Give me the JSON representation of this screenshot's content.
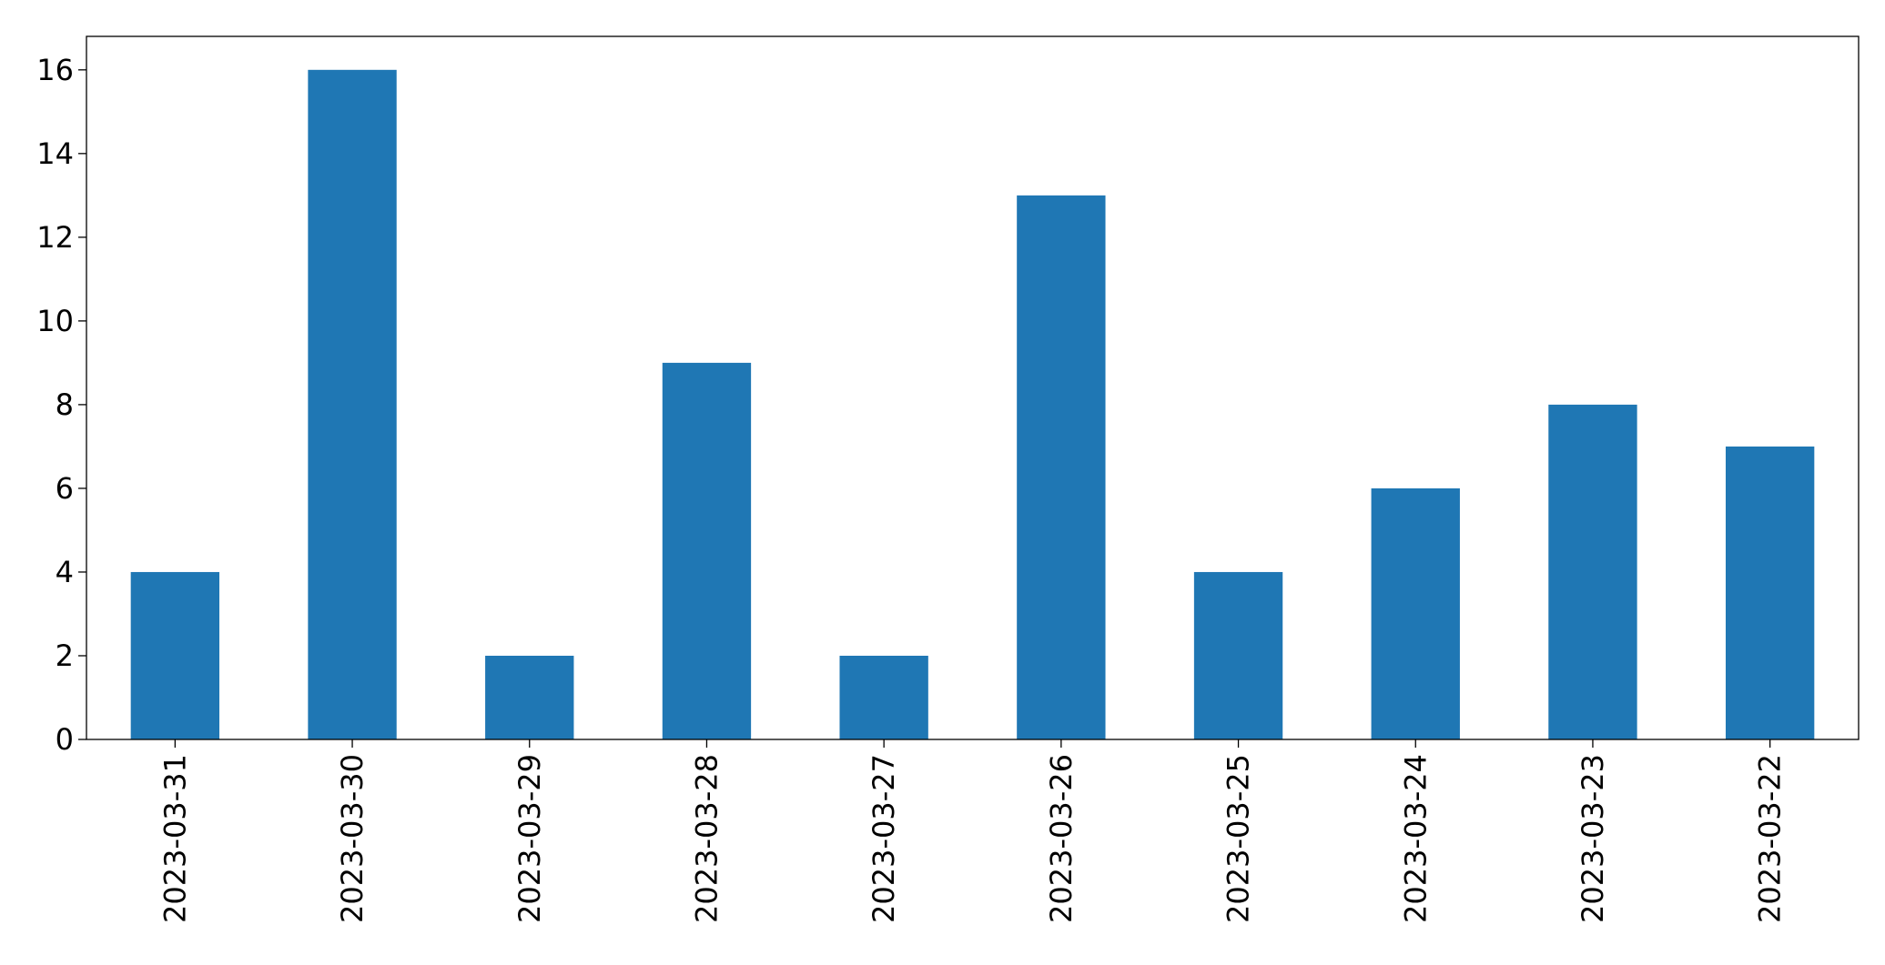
{
  "chart_data": {
    "type": "bar",
    "title": "",
    "xlabel": "",
    "ylabel": "",
    "categories": [
      "2023-03-31",
      "2023-03-30",
      "2023-03-29",
      "2023-03-28",
      "2023-03-27",
      "2023-03-26",
      "2023-03-25",
      "2023-03-24",
      "2023-03-23",
      "2023-03-22"
    ],
    "values": [
      4,
      16,
      2,
      9,
      2,
      13,
      4,
      6,
      8,
      7
    ],
    "ylim": [
      0,
      16.8
    ],
    "yticks": [
      "0",
      "2",
      "4",
      "6",
      "8",
      "10",
      "12",
      "14",
      "16"
    ],
    "grid": false,
    "legend": "none",
    "x_tick_rotation": "vertical",
    "bar_color": "#1f77b4"
  }
}
